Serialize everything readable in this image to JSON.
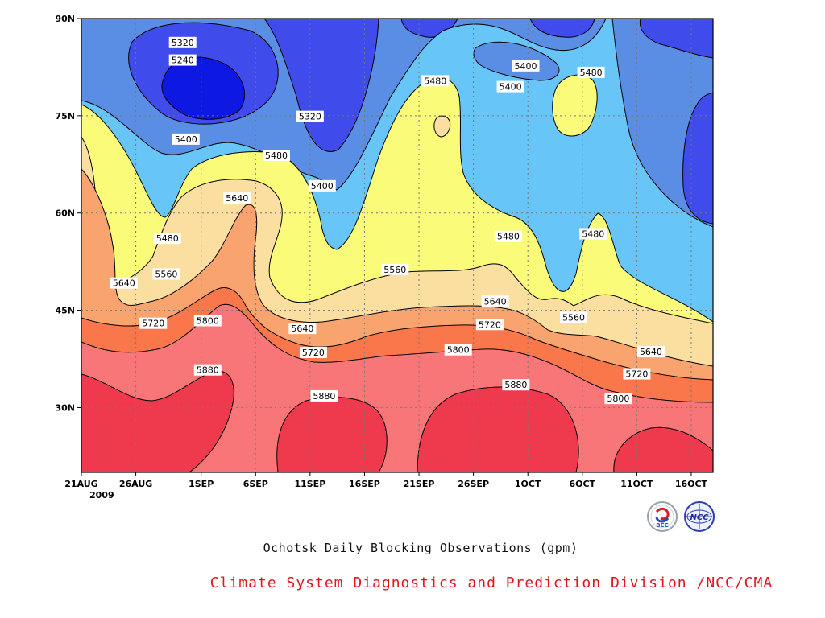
{
  "chart_data": {
    "type": "contour",
    "title": "Ochotsk Daily Blocking Observations (gpm)",
    "credit": "Climate System Diagnostics and Prediction Division /NCC/CMA",
    "y_axis": {
      "range": [
        20,
        90
      ],
      "ticks": [
        {
          "value": 30,
          "label": "30N"
        },
        {
          "value": 45,
          "label": "45N"
        },
        {
          "value": 60,
          "label": "60N"
        },
        {
          "value": 75,
          "label": "75N"
        },
        {
          "value": 90,
          "label": "90N"
        }
      ]
    },
    "x_axis": {
      "range_days": [
        0,
        58
      ],
      "ticks": [
        {
          "day": 0,
          "label": "21AUG"
        },
        {
          "day": 5,
          "label": "26AUG"
        },
        {
          "day": 11,
          "label": "1SEP"
        },
        {
          "day": 16,
          "label": "6SEP"
        },
        {
          "day": 21,
          "label": "11SEP"
        },
        {
          "day": 26,
          "label": "16SEP"
        },
        {
          "day": 31,
          "label": "21SEP"
        },
        {
          "day": 36,
          "label": "26SEP"
        },
        {
          "day": 41,
          "label": "1OCT"
        },
        {
          "day": 46,
          "label": "6OCT"
        },
        {
          "day": 51,
          "label": "11OCT"
        },
        {
          "day": 56,
          "label": "16OCT"
        }
      ],
      "year_label": "2009"
    },
    "grid": "dotted",
    "contour_levels": [
      5240,
      5320,
      5400,
      5480,
      5560,
      5640,
      5720,
      5800,
      5880
    ],
    "fill_colors": {
      "below_5240": "#0d19e2",
      "5240_5320": "#3f4bea",
      "5320_5400": "#5a8ee4",
      "5400_5480": "#68c5f7",
      "5480_5560": "#fbfb7a",
      "5560_5640": "#fbdfa0",
      "5640_5720": "#f9a36e",
      "5720_5800": "#f9774a",
      "5800_5880": "#f87678",
      "above_5880": "#ef3a4e"
    },
    "contour_labels": [
      {
        "text": "5320",
        "day": 9.3,
        "lat": 86.3
      },
      {
        "text": "5240",
        "day": 9.3,
        "lat": 83.6
      },
      {
        "text": "5320",
        "day": 21.0,
        "lat": 74.9
      },
      {
        "text": "5400",
        "day": 9.6,
        "lat": 71.4
      },
      {
        "text": "5480",
        "day": 17.9,
        "lat": 68.9
      },
      {
        "text": "5400",
        "day": 22.1,
        "lat": 64.2
      },
      {
        "text": "5640",
        "day": 14.3,
        "lat": 62.3
      },
      {
        "text": "5480",
        "day": 7.9,
        "lat": 56.1
      },
      {
        "text": "5560",
        "day": 7.8,
        "lat": 50.6
      },
      {
        "text": "5640",
        "day": 3.9,
        "lat": 49.2
      },
      {
        "text": "5720",
        "day": 6.6,
        "lat": 43.0
      },
      {
        "text": "5800",
        "day": 11.6,
        "lat": 43.4
      },
      {
        "text": "5640",
        "day": 20.3,
        "lat": 42.2
      },
      {
        "text": "5720",
        "day": 21.3,
        "lat": 38.5
      },
      {
        "text": "5880",
        "day": 11.6,
        "lat": 35.8
      },
      {
        "text": "5880",
        "day": 22.3,
        "lat": 31.8
      },
      {
        "text": "5560",
        "day": 28.8,
        "lat": 51.3
      },
      {
        "text": "5480",
        "day": 32.5,
        "lat": 80.4
      },
      {
        "text": "5400",
        "day": 40.8,
        "lat": 82.7
      },
      {
        "text": "5400",
        "day": 39.4,
        "lat": 79.5
      },
      {
        "text": "5480",
        "day": 46.8,
        "lat": 81.7
      },
      {
        "text": "5480",
        "day": 39.2,
        "lat": 56.4
      },
      {
        "text": "5480",
        "day": 47.0,
        "lat": 56.8
      },
      {
        "text": "5640",
        "day": 38.0,
        "lat": 46.4
      },
      {
        "text": "5720",
        "day": 37.5,
        "lat": 42.8
      },
      {
        "text": "5800",
        "day": 34.6,
        "lat": 38.9
      },
      {
        "text": "5880",
        "day": 39.9,
        "lat": 33.5
      },
      {
        "text": "5560",
        "day": 45.2,
        "lat": 43.9
      },
      {
        "text": "5640",
        "day": 52.3,
        "lat": 38.6
      },
      {
        "text": "5720",
        "day": 51.0,
        "lat": 35.2
      },
      {
        "text": "5800",
        "day": 49.3,
        "lat": 31.4
      }
    ]
  },
  "logos": {
    "bcc": "BCC",
    "ncc": "NCC"
  }
}
